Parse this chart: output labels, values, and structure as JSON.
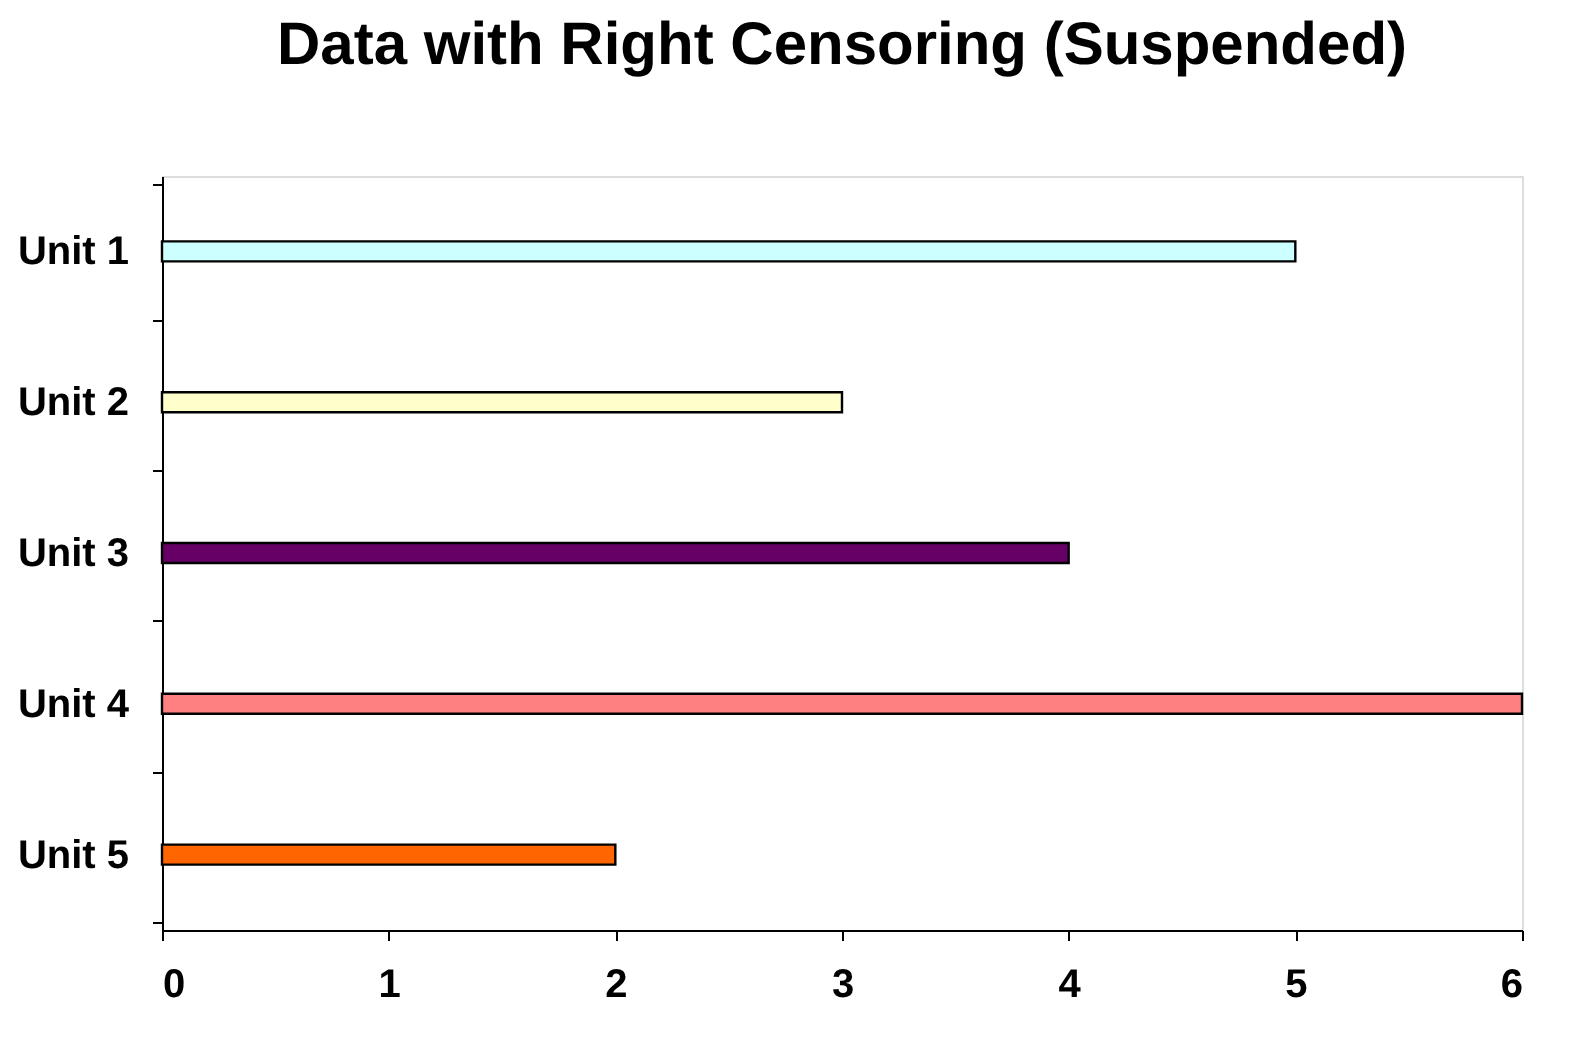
{
  "chart_data": {
    "type": "bar",
    "orientation": "horizontal",
    "title": "Data with Right Censoring (Suspended)",
    "categories": [
      "Unit 1",
      "Unit 2",
      "Unit 3",
      "Unit 4",
      "Unit 5"
    ],
    "values": [
      5,
      3,
      4,
      6,
      2
    ],
    "colors": [
      "#ccffff",
      "#ffffcc",
      "#660066",
      "#ff8080",
      "#ff6600"
    ],
    "xlim": [
      0,
      6
    ],
    "xticks": [
      0,
      1,
      2,
      3,
      4,
      5,
      6
    ],
    "grid": false
  }
}
